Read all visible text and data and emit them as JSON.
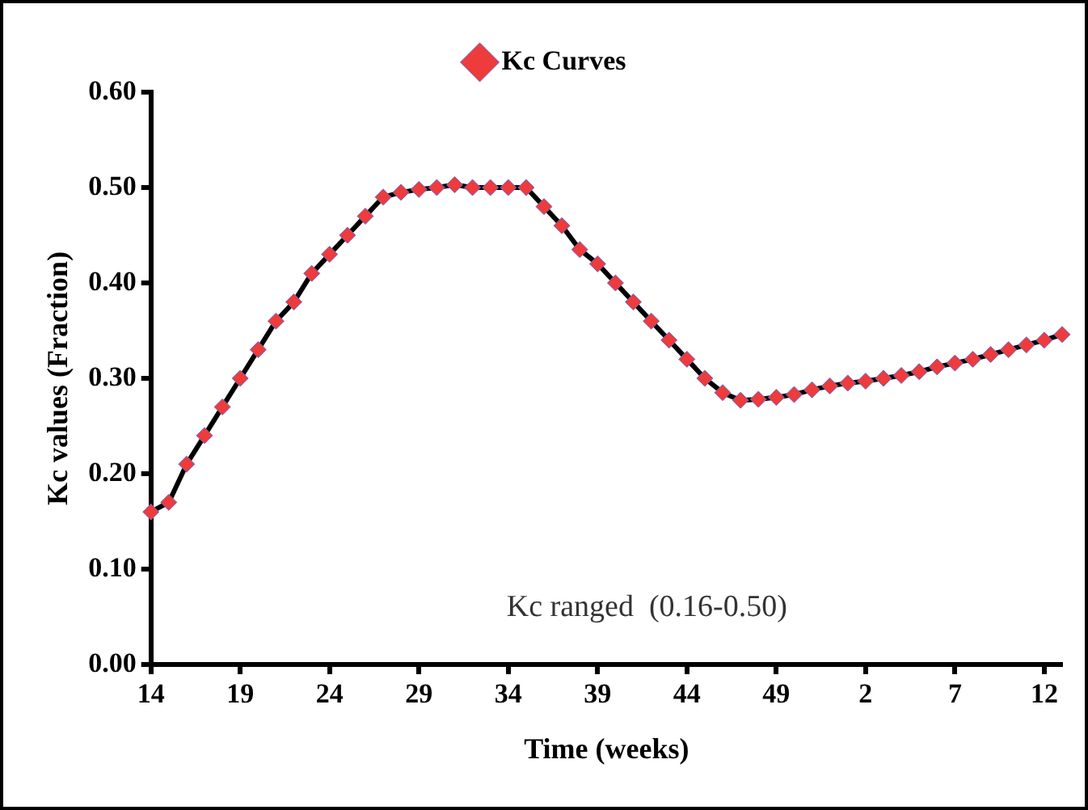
{
  "chart_data": {
    "type": "line",
    "xlabel": "Time (weeks)",
    "ylabel": "Kc values (Fraction)",
    "categories": [
      "14",
      null,
      null,
      null,
      null,
      "19",
      null,
      null,
      null,
      null,
      "24",
      null,
      null,
      null,
      null,
      "29",
      null,
      null,
      null,
      null,
      "34",
      null,
      null,
      null,
      null,
      "39",
      null,
      null,
      null,
      null,
      "44",
      null,
      null,
      null,
      null,
      "49",
      null,
      null,
      null,
      null,
      "2",
      null,
      null,
      null,
      null,
      "7",
      null,
      null,
      null,
      null,
      "12",
      null
    ],
    "series": [
      {
        "name": "Kc Curves",
        "color": "#000000",
        "values": [
          0.16,
          0.17,
          0.21,
          0.24,
          0.27,
          0.3,
          0.33,
          0.36,
          0.38,
          0.41,
          0.43,
          0.45,
          0.47,
          0.49,
          0.495,
          0.498,
          0.5,
          0.503,
          0.5,
          0.5,
          0.5,
          0.5,
          0.48,
          0.46,
          0.435,
          0.42,
          0.4,
          0.38,
          0.36,
          0.34,
          0.32,
          0.3,
          0.285,
          0.277,
          0.278,
          0.28,
          0.283,
          0.288,
          0.292,
          0.295,
          0.297,
          0.3,
          0.303,
          0.307,
          0.312,
          0.316,
          0.32,
          0.325,
          0.33,
          0.335,
          0.34,
          0.346
        ]
      }
    ],
    "marker": "diamond",
    "line_style": "solid",
    "grid": false,
    "legend": "top",
    "ylim": [
      0,
      0.6
    ],
    "yticks": [
      {
        "value": 0,
        "label": "0.00"
      },
      {
        "value": 0.1,
        "label": "0.10"
      },
      {
        "value": 0.2,
        "label": "0.20"
      },
      {
        "value": 0.3,
        "label": "0.30"
      },
      {
        "value": 0.4,
        "label": "0.40"
      },
      {
        "value": 0.5,
        "label": "0.50"
      },
      {
        "value": 0.6,
        "label": "0.60"
      }
    ],
    "annotations": [
      "Kc ranged  (0.16-0.50)"
    ]
  }
}
